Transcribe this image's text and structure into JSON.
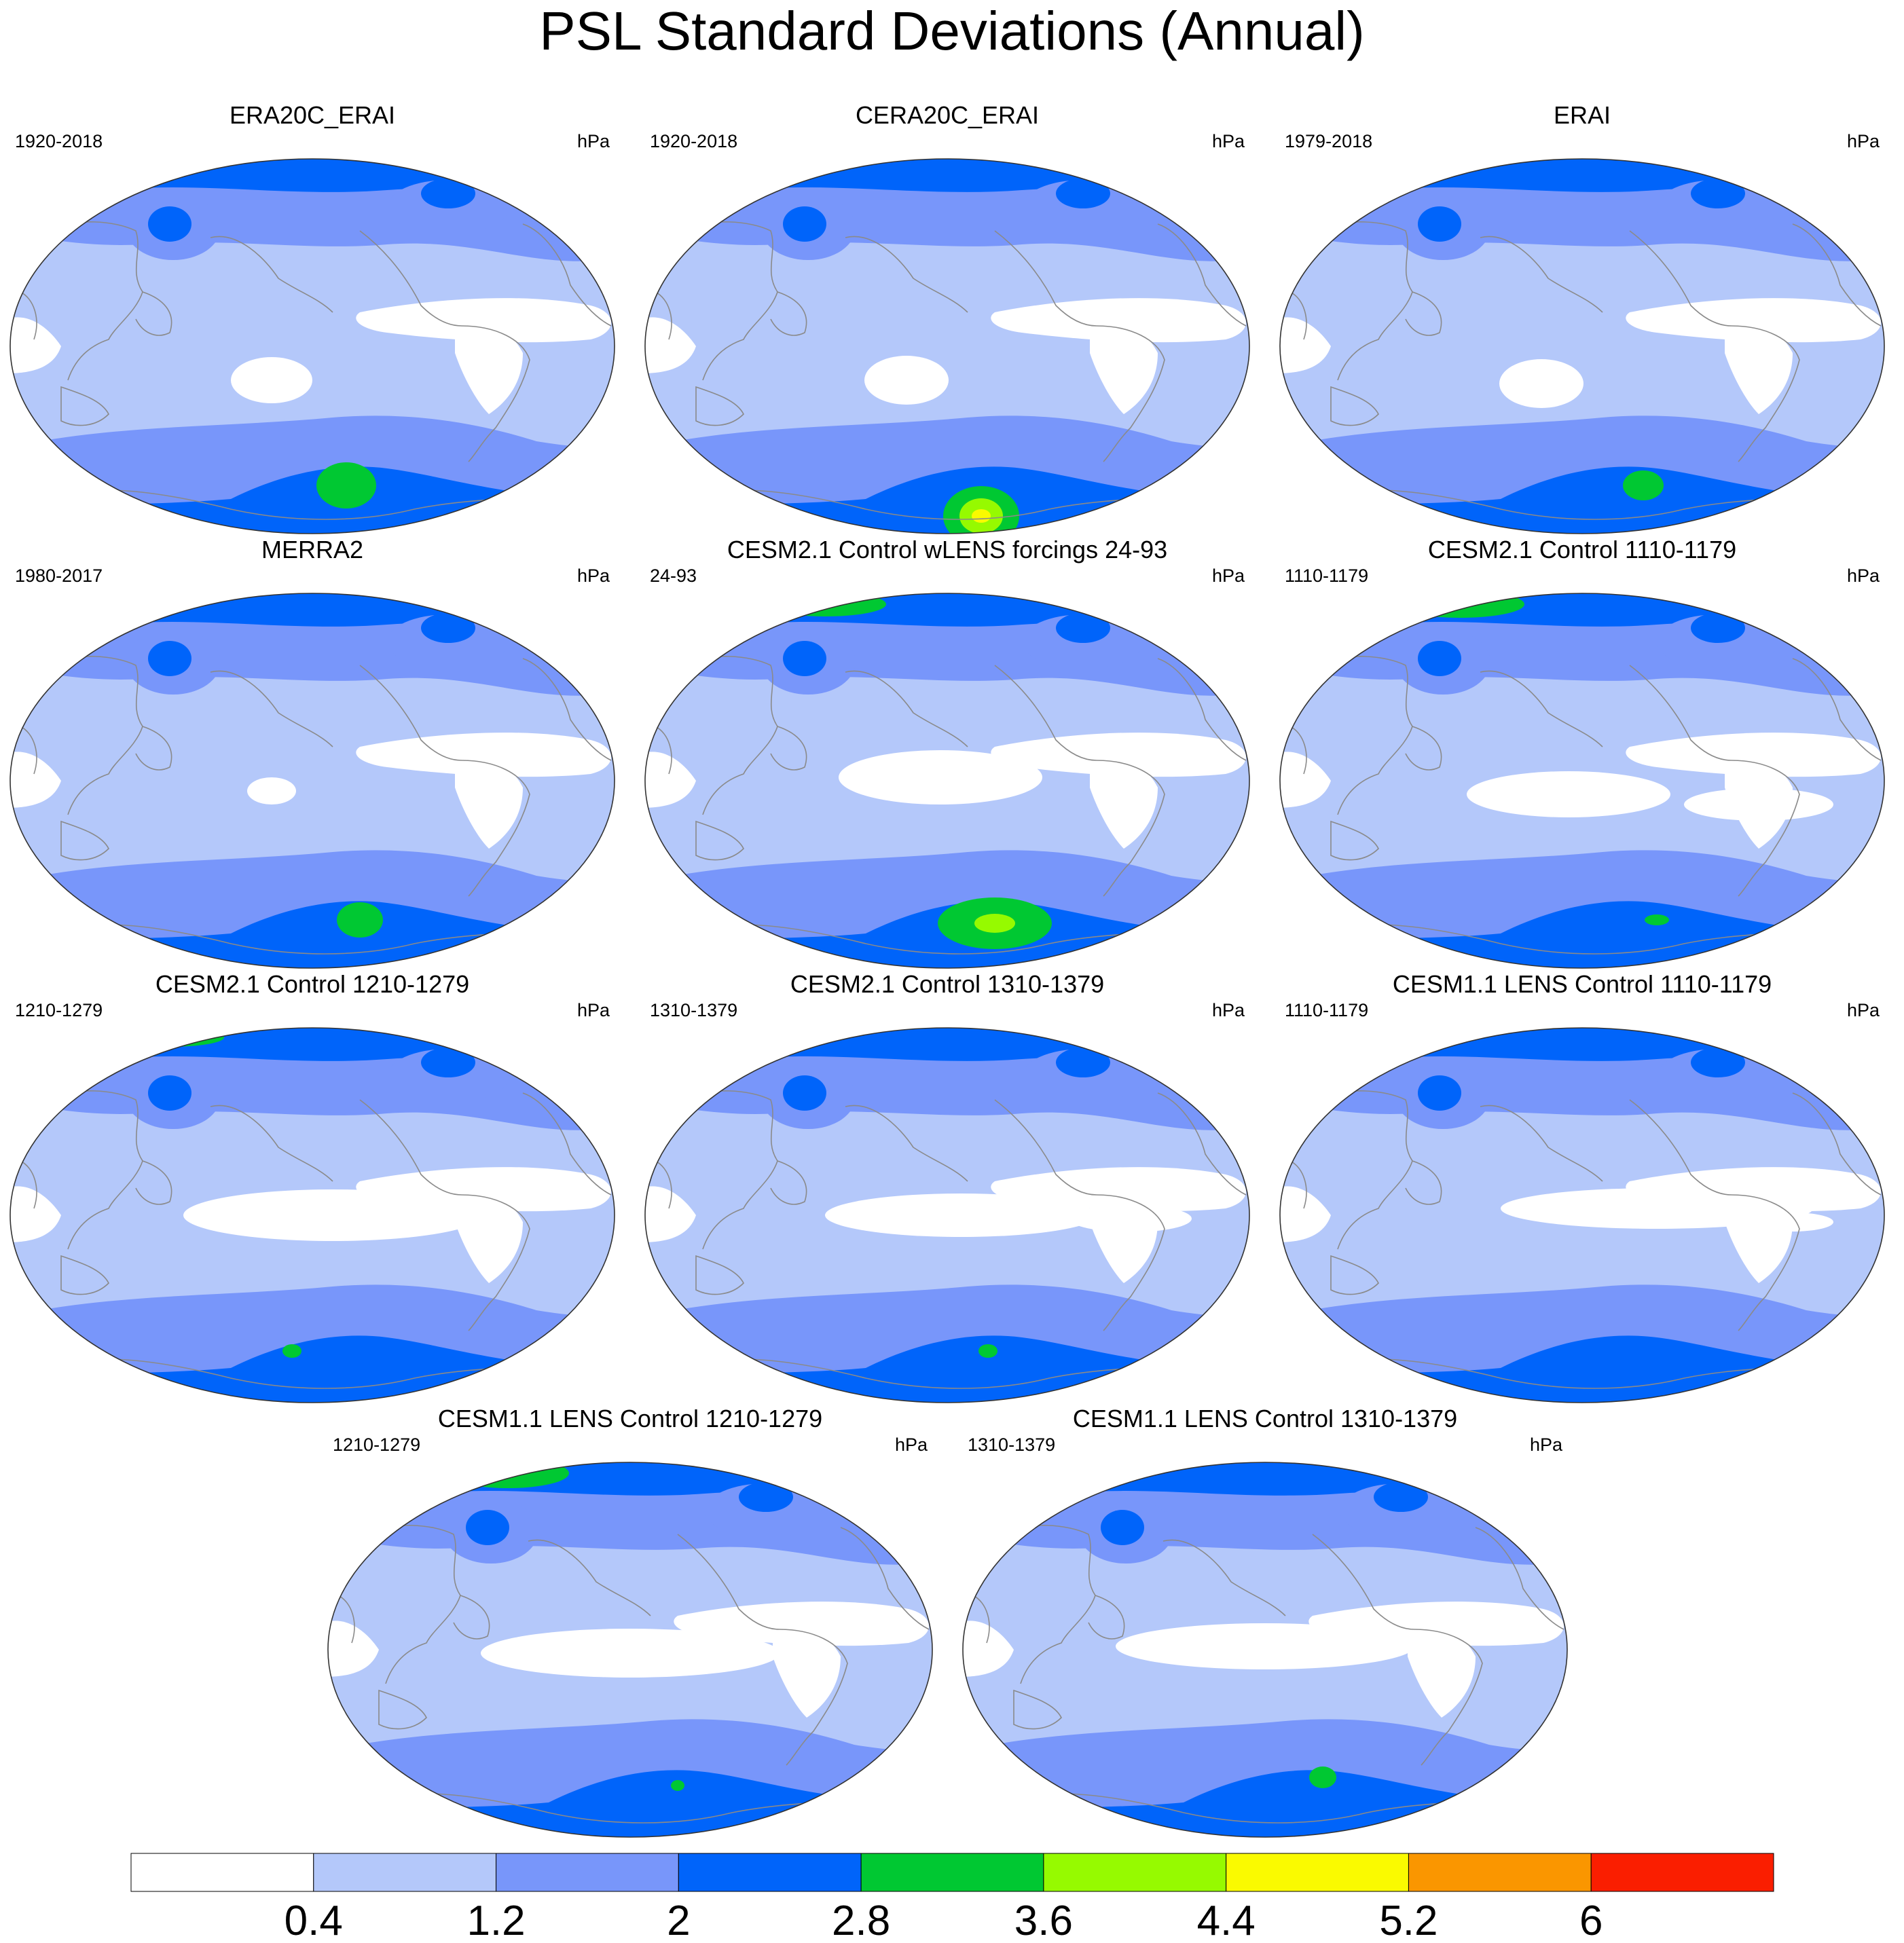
{
  "figure": {
    "title": "PSL Standard Deviations (Annual)"
  },
  "panels": [
    {
      "title": "ERA20C_ERAI",
      "period": "1920-2018",
      "units": "hPa",
      "variant": 0
    },
    {
      "title": "CERA20C_ERAI",
      "period": "1920-2018",
      "units": "hPa",
      "variant": 1
    },
    {
      "title": "ERAI",
      "period": "1979-2018",
      "units": "hPa",
      "variant": 2
    },
    {
      "title": "MERRA2",
      "period": "1980-2017",
      "units": "hPa",
      "variant": 3
    },
    {
      "title": "CESM2.1 Control wLENS forcings 24-93",
      "period": "24-93",
      "units": "hPa",
      "variant": 4
    },
    {
      "title": "CESM2.1 Control 1110-1179",
      "period": "1110-1179",
      "units": "hPa",
      "variant": 5
    },
    {
      "title": "CESM2.1 Control 1210-1279",
      "period": "1210-1279",
      "units": "hPa",
      "variant": 6
    },
    {
      "title": "CESM2.1 Control 1310-1379",
      "period": "1310-1379",
      "units": "hPa",
      "variant": 7
    },
    {
      "title": "CESM1.1 LENS Control 1110-1179",
      "period": "1110-1179",
      "units": "hPa",
      "variant": 8
    },
    {
      "title": "CESM1.1 LENS Control 1210-1279",
      "period": "1210-1279",
      "units": "hPa",
      "variant": 9
    },
    {
      "title": "CESM1.1 LENS Control 1310-1379",
      "period": "1310-1379",
      "units": "hPa",
      "variant": 10
    }
  ],
  "colorbar": {
    "levels": [
      "0.4",
      "1.2",
      "2",
      "2.8",
      "3.6",
      "4.4",
      "5.2",
      "6"
    ],
    "colors": [
      "#ffffff",
      "#b4c8fa",
      "#7896fa",
      "#0064fa",
      "#00c832",
      "#96fa00",
      "#fafa00",
      "#fa9600",
      "#fa1e00"
    ]
  },
  "map_features": {
    "colors": {
      "band_lt": "#b4c8fa",
      "band_md": "#7896fa",
      "band_dk": "#0064fa",
      "green": "#00c832",
      "lime": "#96fa00",
      "yellow": "#fafa00",
      "coast": "#8a8a8a",
      "border": "#333333"
    }
  }
}
